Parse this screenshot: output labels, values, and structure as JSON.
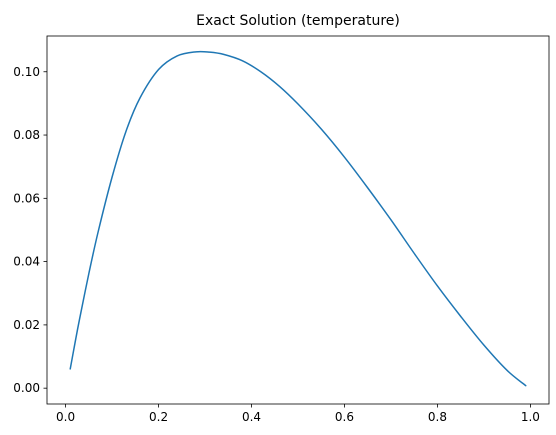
{
  "chart_data": {
    "type": "line",
    "title": "Exact Solution (temperature)",
    "xlabel": "",
    "ylabel": "",
    "xlim": [
      -0.04,
      1.04
    ],
    "ylim": [
      -0.005,
      0.1113
    ],
    "xticks": [
      0.0,
      0.2,
      0.4,
      0.6,
      0.8,
      1.0
    ],
    "xtick_labels": [
      "0.0",
      "0.2",
      "0.4",
      "0.6",
      "0.8",
      "1.0"
    ],
    "yticks": [
      0.0,
      0.02,
      0.04,
      0.06,
      0.08,
      0.1
    ],
    "ytick_labels": [
      "0.00",
      "0.02",
      "0.04",
      "0.06",
      "0.08",
      "0.10"
    ],
    "grid": false,
    "series": [
      {
        "color": "#1f77b4",
        "x": [
          0.01,
          0.02,
          0.03,
          0.05,
          0.07,
          0.1,
          0.13,
          0.16,
          0.2,
          0.24,
          0.28,
          0.31,
          0.34,
          0.38,
          0.42,
          0.46,
          0.5,
          0.55,
          0.6,
          0.65,
          0.7,
          0.75,
          0.8,
          0.85,
          0.9,
          0.95,
          0.99
        ],
        "y": [
          0.0061,
          0.0141,
          0.0218,
          0.0362,
          0.0494,
          0.0667,
          0.0812,
          0.0917,
          0.1007,
          0.105,
          0.1063,
          0.1062,
          0.1055,
          0.1035,
          0.1,
          0.0954,
          0.0898,
          0.0819,
          0.073,
          0.0633,
          0.0532,
          0.0426,
          0.0323,
          0.0227,
          0.0136,
          0.0056,
          0.0008
        ]
      }
    ]
  }
}
